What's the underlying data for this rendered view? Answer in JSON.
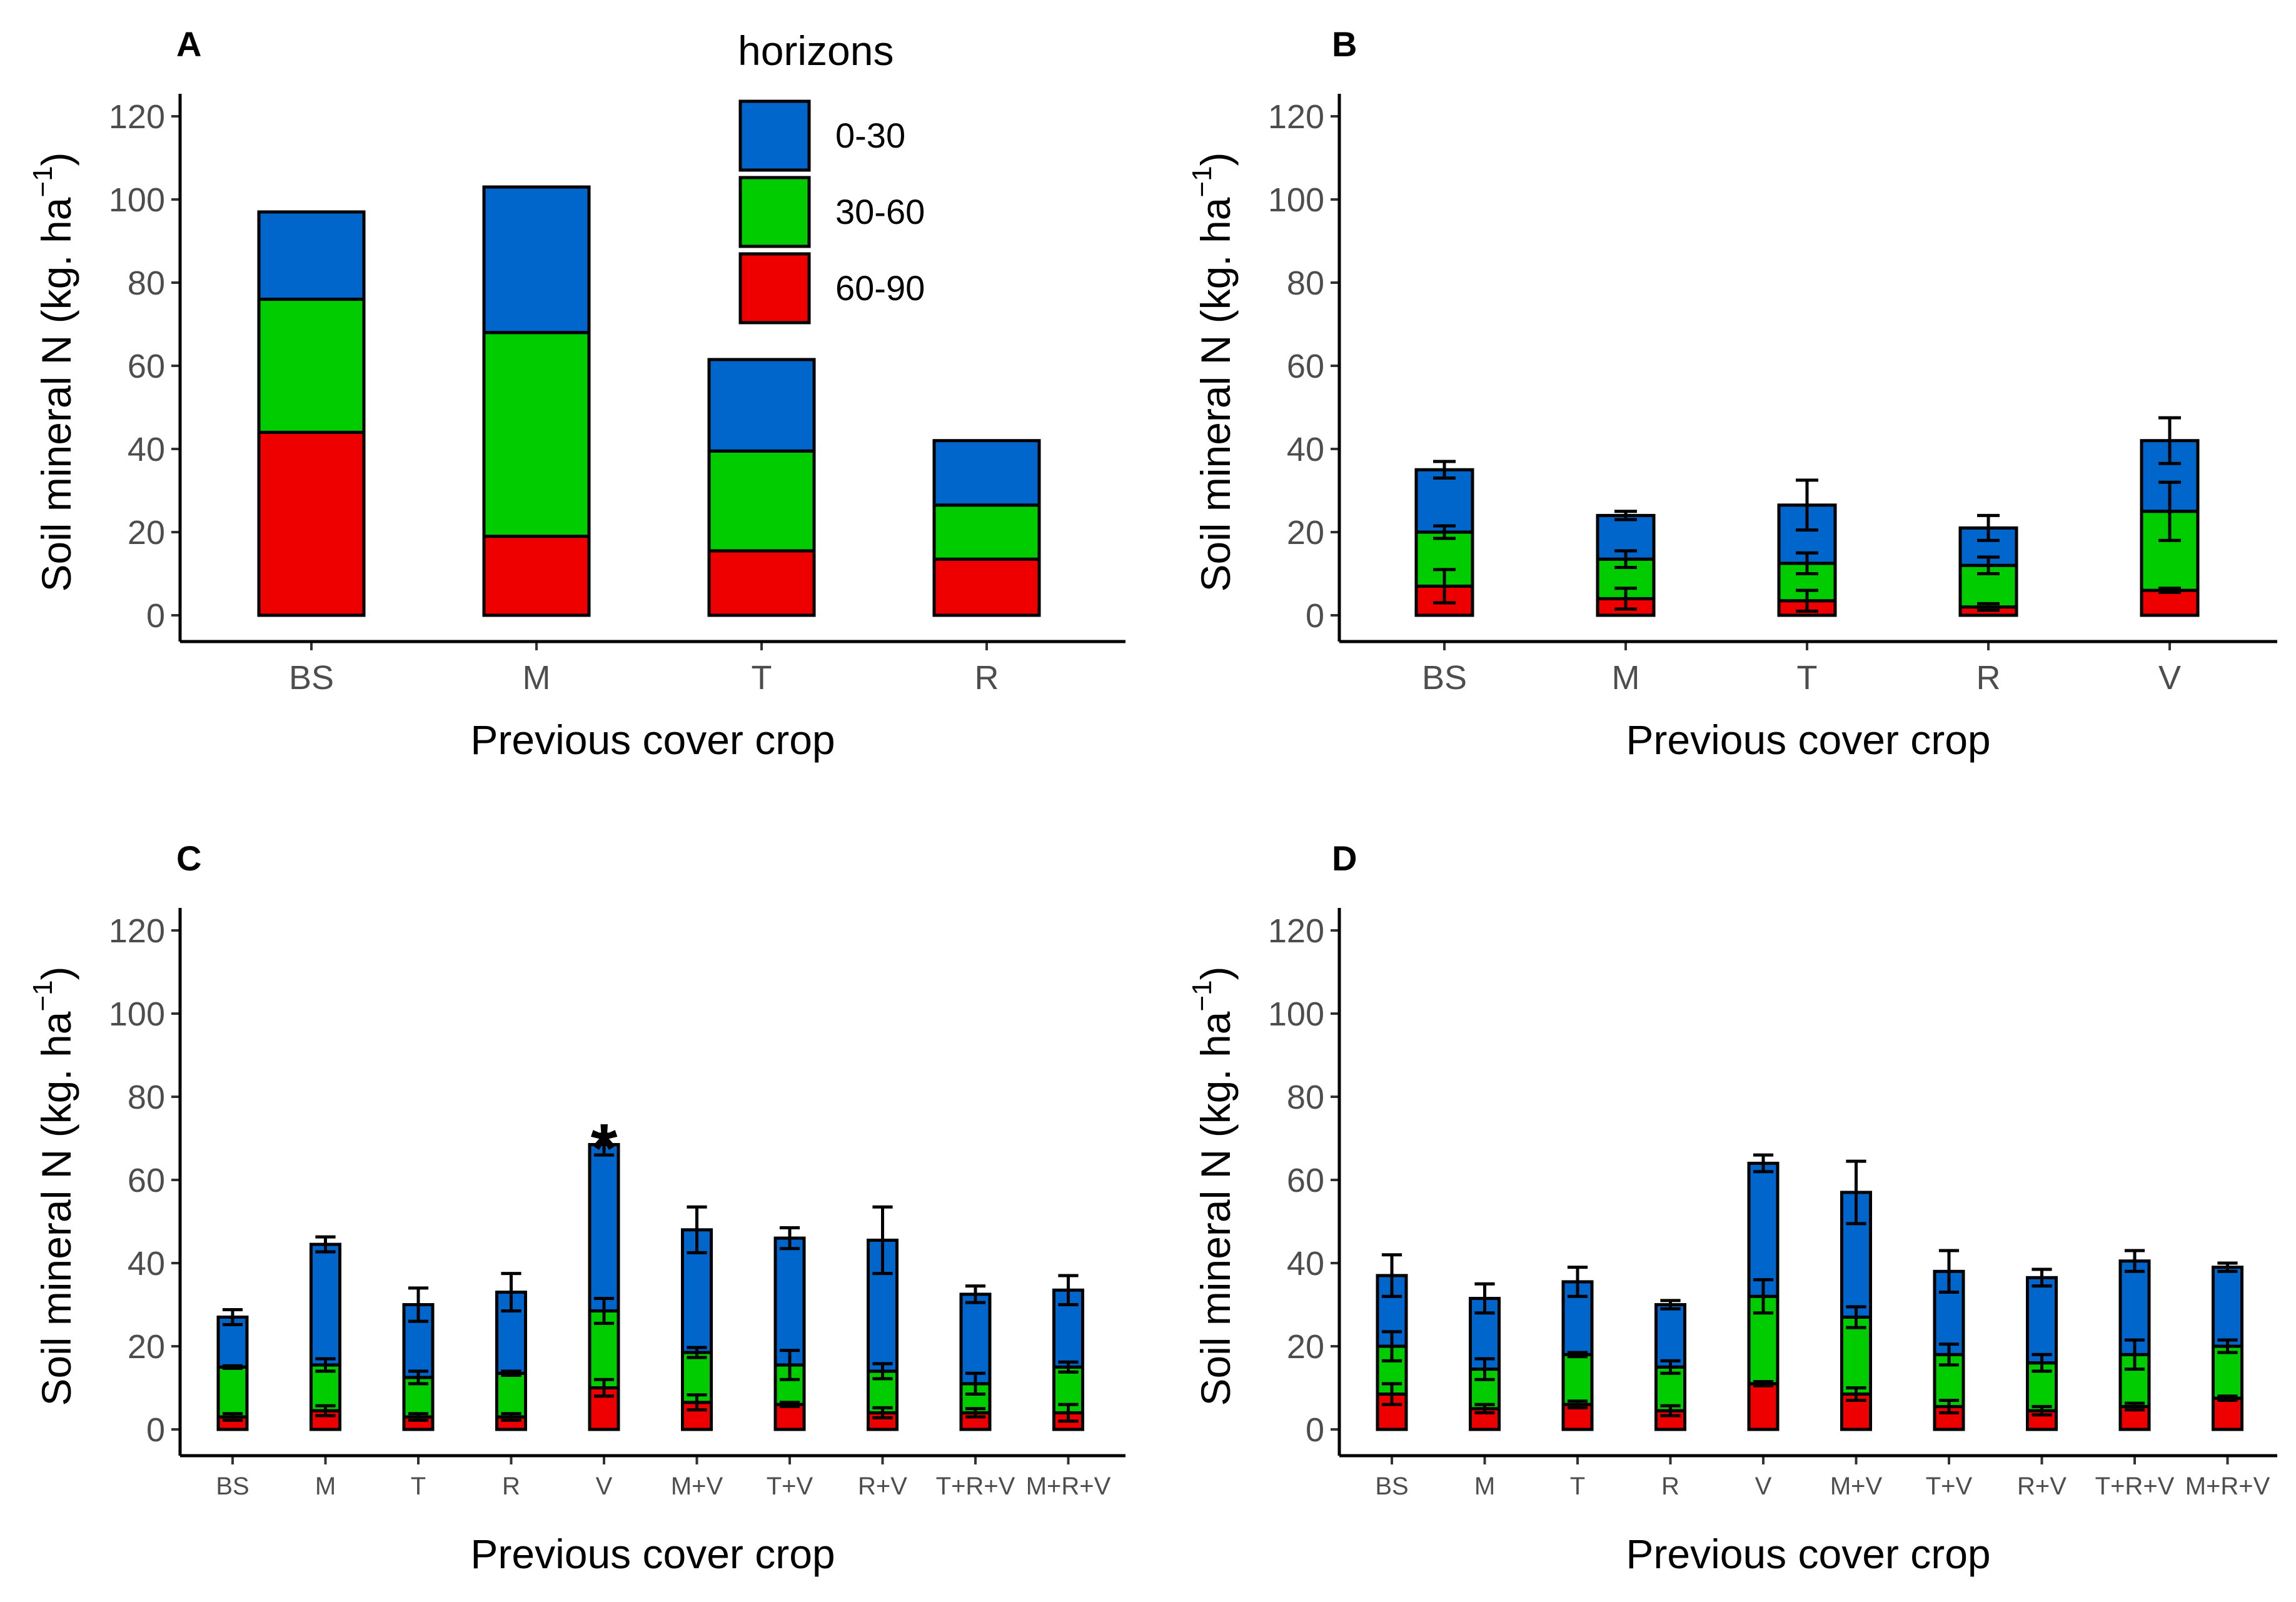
{
  "colors": {
    "h0_30": "#0066CC",
    "h30_60": "#00CC00",
    "h60_90": "#EE0000",
    "stroke": "#000000"
  },
  "legend": {
    "title": "horizons",
    "items": [
      "0-30",
      "30-60",
      "60-90"
    ]
  },
  "chart_data": [
    {
      "panel": "A",
      "type": "bar",
      "stacked": true,
      "ylabel": "Soil mineral N (kg. ha",
      "ylabel_sup": "−1",
      "ylabel_close": ")",
      "xlabel": "Previous cover crop",
      "ylim": [
        0,
        120
      ],
      "yticks": [
        0,
        20,
        40,
        60,
        80,
        100,
        120
      ],
      "categories": [
        "BS",
        "M",
        "T",
        "R"
      ],
      "series": [
        {
          "name": "60-90",
          "values": [
            44,
            19,
            15.5,
            13.5
          ]
        },
        {
          "name": "30-60",
          "values": [
            32,
            49,
            24,
            13
          ]
        },
        {
          "name": "0-30",
          "values": [
            21,
            35,
            22,
            15.5
          ]
        }
      ],
      "errors": null
    },
    {
      "panel": "B",
      "type": "bar",
      "stacked": true,
      "ylabel": "Soil mineral N (kg. ha",
      "ylabel_sup": "−1",
      "ylabel_close": ")",
      "xlabel": "Previous cover crop",
      "ylim": [
        0,
        120
      ],
      "yticks": [
        0,
        20,
        40,
        60,
        80,
        100,
        120
      ],
      "categories": [
        "BS",
        "M",
        "T",
        "R",
        "V"
      ],
      "series": [
        {
          "name": "60-90",
          "values": [
            7,
            4,
            3.5,
            2,
            6
          ]
        },
        {
          "name": "30-60",
          "values": [
            13,
            9.5,
            9,
            10,
            19
          ]
        },
        {
          "name": "0-30",
          "values": [
            15,
            10.5,
            14,
            9,
            17
          ]
        }
      ],
      "errors": [
        [
          4,
          1.5,
          2
        ],
        [
          2.5,
          2,
          1
        ],
        [
          2.5,
          2.5,
          6
        ],
        [
          0.8,
          2,
          3
        ],
        [
          0.5,
          7,
          5.5
        ]
      ]
    },
    {
      "panel": "C",
      "type": "bar",
      "stacked": true,
      "ylabel": "Soil mineral N (kg. ha",
      "ylabel_sup": "−1",
      "ylabel_close": ")",
      "xlabel": "Previous cover crop",
      "ylim": [
        0,
        120
      ],
      "yticks": [
        0,
        20,
        40,
        60,
        80,
        100,
        120
      ],
      "categories": [
        "BS",
        "M",
        "T",
        "R",
        "V",
        "M+V",
        "T+V",
        "R+V",
        "T+R+V",
        "M+R+V"
      ],
      "series": [
        {
          "name": "60-90",
          "values": [
            3,
            4.5,
            3,
            3,
            10,
            6.5,
            6,
            4,
            4,
            4
          ]
        },
        {
          "name": "30-60",
          "values": [
            12,
            11,
            9.5,
            10.5,
            18.5,
            12,
            9.5,
            10,
            7,
            11
          ]
        },
        {
          "name": "0-30",
          "values": [
            12,
            29,
            17.5,
            19.5,
            40,
            29.5,
            30.5,
            31.5,
            21.5,
            18.5
          ]
        }
      ],
      "errors": [
        [
          0.8,
          0.3,
          1.8
        ],
        [
          1.2,
          1.5,
          1.8
        ],
        [
          0.8,
          1.5,
          4
        ],
        [
          0.8,
          0.5,
          4.5
        ],
        [
          2,
          3,
          2.5
        ],
        [
          1.8,
          1.2,
          5.5
        ],
        [
          0.5,
          3.5,
          2.5
        ],
        [
          1.2,
          1.8,
          8
        ],
        [
          1,
          2.5,
          2
        ],
        [
          2,
          1.2,
          3.5
        ]
      ],
      "annotation": {
        "text": "*",
        "category": "V"
      }
    },
    {
      "panel": "D",
      "type": "bar",
      "stacked": true,
      "ylabel": "Soil mineral N (kg. ha",
      "ylabel_sup": "−1",
      "ylabel_close": ")",
      "xlabel": "Previous cover crop",
      "ylim": [
        0,
        120
      ],
      "yticks": [
        0,
        20,
        40,
        60,
        80,
        100,
        120
      ],
      "categories": [
        "BS",
        "M",
        "T",
        "R",
        "V",
        "M+V",
        "T+V",
        "R+V",
        "T+R+V",
        "M+R+V"
      ],
      "series": [
        {
          "name": "60-90",
          "values": [
            8.5,
            5,
            6,
            4.5,
            11,
            8.5,
            5.5,
            4.5,
            5.5,
            7.5
          ]
        },
        {
          "name": "30-60",
          "values": [
            11.5,
            9.5,
            12,
            10.5,
            21,
            18.5,
            12.5,
            11.5,
            12.5,
            12.5
          ]
        },
        {
          "name": "0-30",
          "values": [
            17,
            17,
            17.5,
            15,
            32,
            30,
            20,
            20.5,
            22.5,
            19
          ]
        }
      ],
      "errors": [
        [
          2.5,
          3.5,
          5
        ],
        [
          1,
          2.5,
          3.5
        ],
        [
          0.8,
          0.5,
          3.5
        ],
        [
          1.2,
          1.5,
          1
        ],
        [
          0.5,
          4,
          2
        ],
        [
          1.5,
          2.5,
          7.5
        ],
        [
          1.5,
          2.5,
          5
        ],
        [
          1,
          2,
          2
        ],
        [
          0.8,
          3.5,
          2.5
        ],
        [
          0.5,
          1.5,
          1
        ]
      ]
    }
  ]
}
